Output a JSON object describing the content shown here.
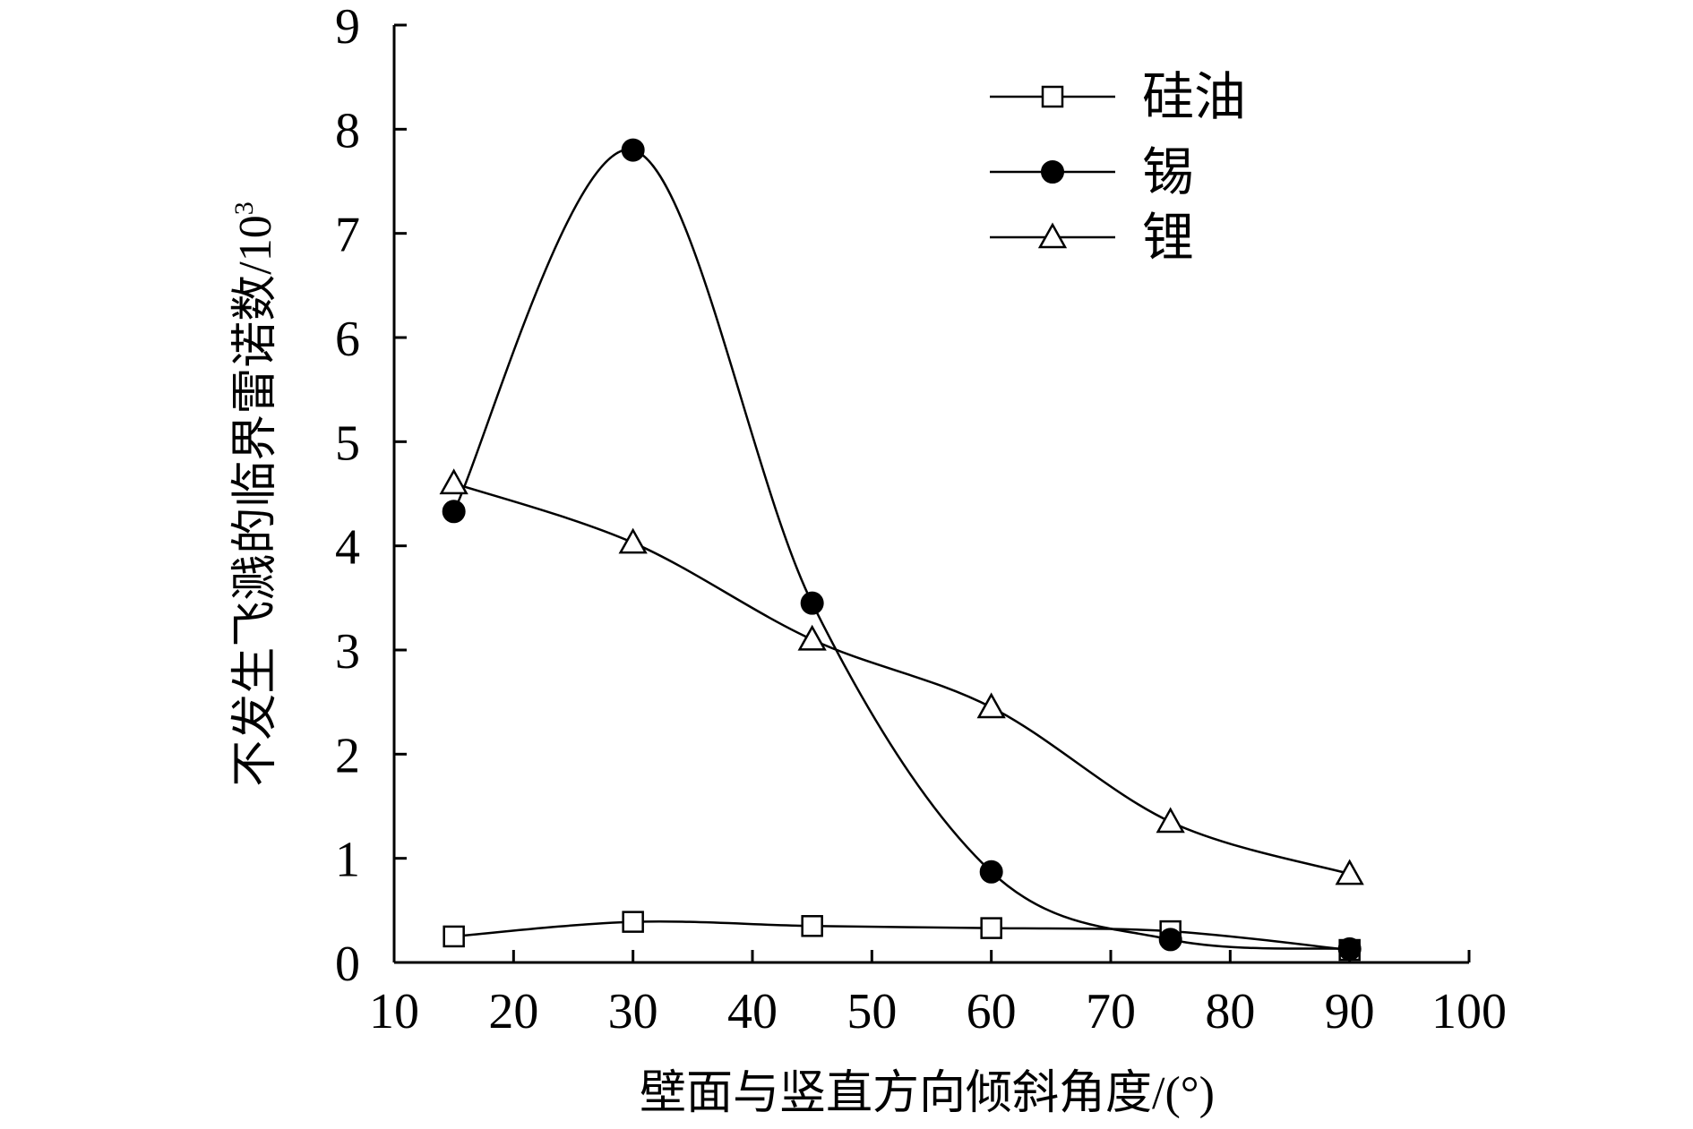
{
  "chart_data": {
    "type": "line",
    "xlabel": "壁面与竖直方向倾斜角度/(°)",
    "ylabel": "不发生飞溅的临界雷诺数/10",
    "ylabel_sup": "3",
    "xlim": [
      10,
      100
    ],
    "ylim": [
      0,
      9
    ],
    "xticks": [
      10,
      20,
      30,
      40,
      50,
      60,
      70,
      80,
      90,
      100
    ],
    "yticks": [
      0,
      1,
      2,
      3,
      4,
      5,
      6,
      7,
      8,
      9
    ],
    "grid": false,
    "legend_position": "top-right",
    "x": [
      15,
      30,
      45,
      60,
      75,
      90
    ],
    "series": [
      {
        "name": "硅油",
        "marker": "square-open",
        "values": [
          0.25,
          0.39,
          0.35,
          0.33,
          0.3,
          0.12
        ]
      },
      {
        "name": "锡",
        "marker": "circle-filled",
        "values": [
          4.33,
          7.8,
          3.45,
          0.87,
          0.22,
          0.13
        ]
      },
      {
        "name": "锂",
        "marker": "triangle-open",
        "values": [
          4.6,
          4.03,
          3.1,
          2.45,
          1.35,
          0.85
        ]
      }
    ]
  }
}
